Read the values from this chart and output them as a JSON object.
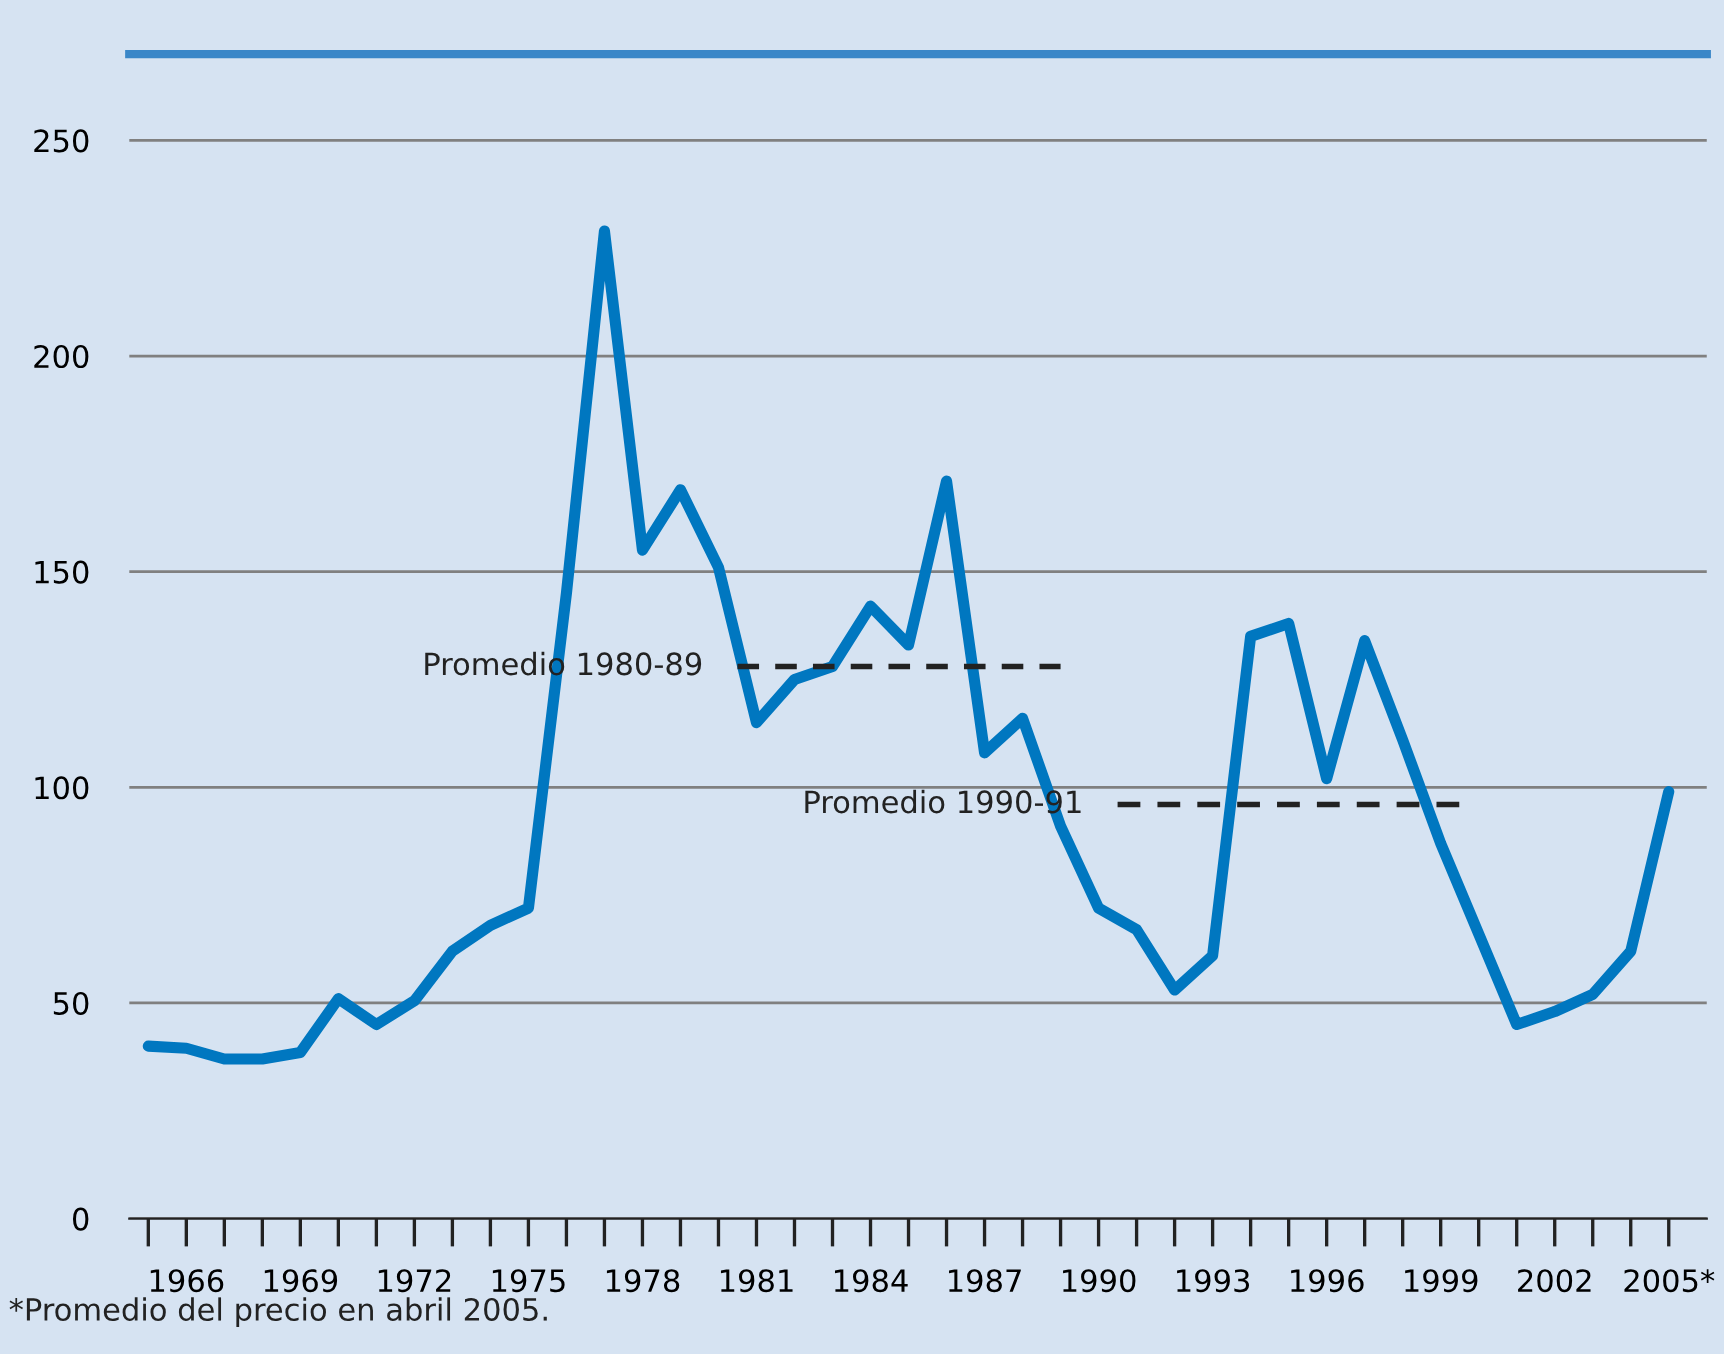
{
  "chart_data": {
    "type": "line",
    "x": [
      1965,
      1966,
      1967,
      1968,
      1969,
      1970,
      1971,
      1972,
      1973,
      1974,
      1975,
      1976,
      1977,
      1978,
      1979,
      1980,
      1981,
      1982,
      1983,
      1984,
      1985,
      1986,
      1987,
      1988,
      1989,
      1990,
      1991,
      1992,
      1993,
      1994,
      1995,
      1996,
      1997,
      1998,
      1999,
      2000,
      2001,
      2002,
      2003,
      2004,
      2005
    ],
    "series": [
      {
        "color": "#0077c0",
        "values": [
          40,
          39.5,
          37,
          37,
          38.5,
          51,
          45,
          50.5,
          62,
          68,
          72,
          145,
          229,
          155,
          169,
          151,
          115,
          125,
          128,
          142,
          133,
          171,
          108,
          116,
          91,
          72,
          67,
          53,
          61,
          135,
          138,
          102,
          134,
          111,
          87,
          66,
          45,
          48,
          52,
          62,
          99
        ]
      },
      {
        "type": "line",
        "x": [
          1980.5,
          1989
        ],
        "color": "#222222",
        "line_style": "dashed",
        "values": [
          128,
          128
        ]
      },
      {
        "type": "line",
        "x": [
          1990.5,
          1999.5
        ],
        "color": "#222222",
        "line_style": "dashed",
        "values": [
          96,
          96
        ]
      }
    ],
    "annotations": [
      {
        "text": "Promedio 1980-89",
        "x": 1980.5,
        "y": 128
      },
      {
        "text": "Promedio 1990-91",
        "x": 1990.5,
        "y": 96
      },
      "*Promedio del precio en abril 2005."
    ],
    "xlim": [
      1964.5,
      2006
    ],
    "xticks": [
      {
        "value": 1965,
        "label": null
      },
      1966,
      {
        "value": 1967,
        "label": null
      },
      {
        "value": 1968,
        "label": null
      },
      1969,
      {
        "value": 1970,
        "label": null
      },
      {
        "value": 1971,
        "label": null
      },
      1972,
      {
        "value": 1973,
        "label": null
      },
      {
        "value": 1974,
        "label": null
      },
      1975,
      {
        "value": 1976,
        "label": null
      },
      {
        "value": 1977,
        "label": null
      },
      1978,
      {
        "value": 1979,
        "label": null
      },
      {
        "value": 1980,
        "label": null
      },
      1981,
      {
        "value": 1982,
        "label": null
      },
      {
        "value": 1983,
        "label": null
      },
      1984,
      {
        "value": 1985,
        "label": null
      },
      {
        "value": 1986,
        "label": null
      },
      1987,
      {
        "value": 1988,
        "label": null
      },
      {
        "value": 1989,
        "label": null
      },
      1990,
      {
        "value": 1991,
        "label": null
      },
      {
        "value": 1992,
        "label": null
      },
      1993,
      {
        "value": 1994,
        "label": null
      },
      {
        "value": 1995,
        "label": null
      },
      1996,
      {
        "value": 1997,
        "label": null
      },
      {
        "value": 1998,
        "label": null
      },
      1999,
      {
        "value": 2000,
        "label": null
      },
      {
        "value": 2001,
        "label": null
      },
      2002,
      {
        "value": 2003,
        "label": null
      },
      {
        "value": 2004,
        "label": null
      },
      {
        "value": 2005,
        "label": "2005*"
      }
    ],
    "ylim": [
      0,
      270
    ],
    "yticks": [
      0,
      50,
      100,
      150,
      200,
      250
    ],
    "grid": "y",
    "marker": "none",
    "line_style": "solid",
    "legend": false
  }
}
